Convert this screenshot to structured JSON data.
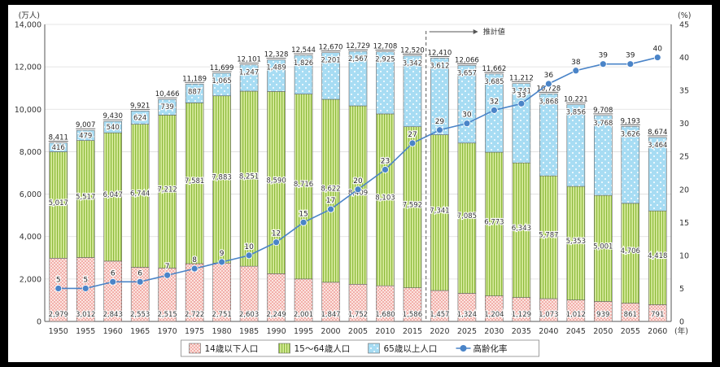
{
  "chart_data": {
    "type": "bar",
    "stacked": true,
    "categories": [
      "1950",
      "1955",
      "1960",
      "1965",
      "1970",
      "1975",
      "1980",
      "1985",
      "1990",
      "1995",
      "2000",
      "2005",
      "2010",
      "2015",
      "2020",
      "2025",
      "2030",
      "2035",
      "2040",
      "2045",
      "2050",
      "2055",
      "2060"
    ],
    "series": [
      {
        "name": "14歳以下人口",
        "color": "#e8726a",
        "pattern": "dots",
        "values": [
          2979,
          3012,
          2843,
          2553,
          2515,
          2722,
          2751,
          2603,
          2249,
          2001,
          1847,
          1752,
          1680,
          1586,
          1457,
          1324,
          1204,
          1129,
          1073,
          1012,
          939,
          861,
          791
        ]
      },
      {
        "name": "15～64歳人口",
        "color": "#b5d566",
        "pattern": "vertical-lines",
        "values": [
          5017,
          5517,
          6047,
          6744,
          7212,
          7581,
          7883,
          8251,
          8590,
          8716,
          8622,
          8409,
          8103,
          7592,
          7341,
          7085,
          6773,
          6343,
          5787,
          5353,
          5001,
          4706,
          4418
        ]
      },
      {
        "name": "65歳以上人口",
        "color": "#9fd6f0",
        "pattern": "dots",
        "values": [
          416,
          479,
          540,
          624,
          739,
          887,
          1065,
          1247,
          1489,
          1826,
          2201,
          2567,
          2925,
          3342,
          3612,
          3657,
          3685,
          3741,
          3868,
          3856,
          3768,
          3626,
          3464
        ]
      }
    ],
    "totals": [
      8411,
      9007,
      9430,
      9921,
      10466,
      11189,
      11699,
      12101,
      12328,
      12544,
      12670,
      12729,
      12708,
      12520,
      12410,
      12066,
      11662,
      11212,
      10728,
      10221,
      9708,
      9193,
      8674
    ],
    "line_series": {
      "name": "高齢化率",
      "color": "#4a84c8",
      "values": [
        5,
        5,
        6,
        6,
        7,
        8,
        9,
        10,
        12,
        15,
        17,
        20,
        23,
        27,
        29,
        30,
        32,
        33,
        36,
        38,
        39,
        39,
        40
      ]
    },
    "y_left": {
      "unit": "(万人)",
      "ticks": [
        "0",
        "2,000",
        "4,000",
        "6,000",
        "8,000",
        "10,000",
        "12,000",
        "14,000"
      ],
      "range": [
        0,
        14000
      ]
    },
    "y_right": {
      "unit": "(%)",
      "ticks": [
        "0",
        "5",
        "10",
        "15",
        "20",
        "25",
        "30",
        "35",
        "40",
        "45"
      ],
      "range": [
        0,
        45
      ]
    },
    "x_unit": "(年)",
    "annotation": "推計値",
    "projection_start": "2020",
    "legend": [
      "14歳以下人口",
      "15～64歳人口",
      "65歳以上人口",
      "高齢化率"
    ],
    "legend_position": "bottom",
    "grid": true
  }
}
